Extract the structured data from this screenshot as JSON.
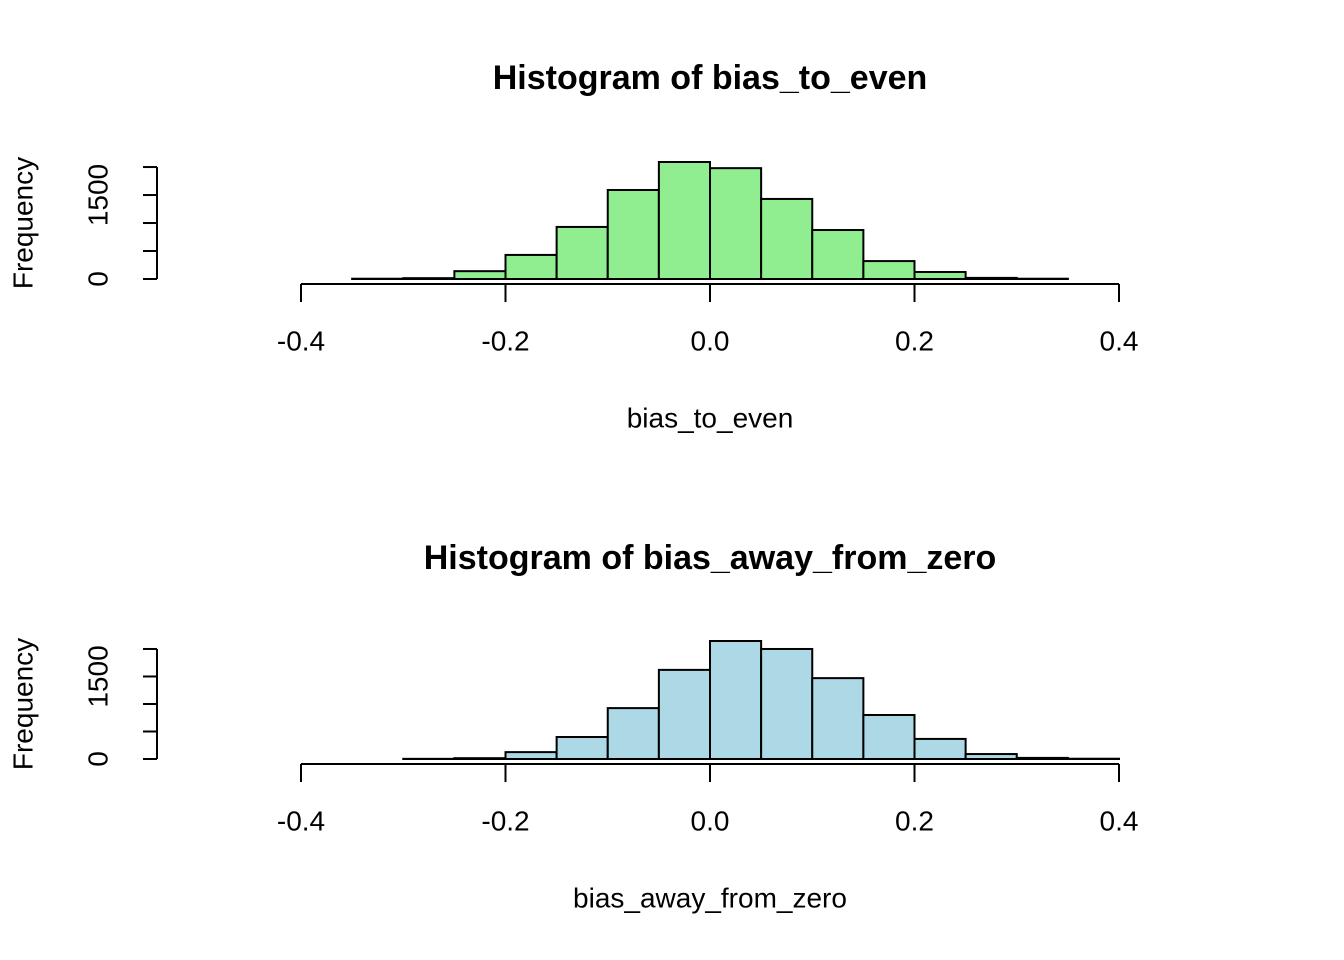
{
  "chart_data": [
    {
      "type": "histogram",
      "title": "Histogram of bias_to_even",
      "xlabel": "bias_to_even",
      "ylabel": "Frequency",
      "bins": [
        -0.35,
        -0.3,
        -0.25,
        -0.2,
        -0.15,
        -0.1,
        -0.05,
        0,
        0.05,
        0.1,
        0.15,
        0.2,
        0.25,
        0.3,
        0.35
      ],
      "values": [
        5,
        15,
        140,
        430,
        930,
        1590,
        2090,
        1980,
        1430,
        875,
        320,
        125,
        20,
        5
      ],
      "color": "#90ee90",
      "xlim": [
        -0.4,
        0.4
      ],
      "xticks": [
        -0.4,
        -0.2,
        {
          "value": 0,
          "label": "0.0"
        },
        0.2,
        0.4
      ],
      "ylim": [
        0,
        2090
      ],
      "yticks": [
        0,
        1500
      ],
      "yminorticks": [
        500,
        1000,
        2000
      ]
    },
    {
      "type": "histogram",
      "title": "Histogram of bias_away_from_zero",
      "xlabel": "bias_away_from_zero",
      "ylabel": "Frequency",
      "bins": [
        -0.3,
        -0.25,
        -0.2,
        -0.15,
        -0.1,
        -0.05,
        0,
        0.05,
        0.1,
        0.15,
        0.2,
        0.25,
        0.3,
        0.35,
        0.4
      ],
      "values": [
        3,
        15,
        125,
        400,
        925,
        1620,
        2145,
        2000,
        1470,
        800,
        365,
        90,
        20,
        5
      ],
      "color": "#add8e6",
      "xlim": [
        -0.4,
        0.4
      ],
      "xticks": [
        -0.4,
        -0.2,
        {
          "value": 0,
          "label": "0.0"
        },
        0.2,
        0.4
      ],
      "ylim": [
        0,
        2145
      ],
      "yticks": [
        0,
        1500
      ],
      "yminorticks": [
        500,
        1000,
        2000
      ]
    }
  ]
}
